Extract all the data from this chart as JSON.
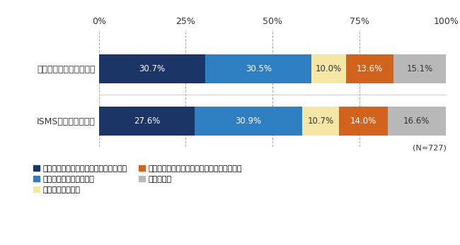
{
  "categories": [
    "プライバシーマーク制度",
    "ISMS適合性評価制度"
  ],
  "series": [
    {
      "label": "以前より重視しており、今後も重視する",
      "values": [
        30.7,
        27.6
      ],
      "color": "#1a3566"
    },
    {
      "label": "重視するように変わった",
      "values": [
        30.5,
        30.9
      ],
      "color": "#2e7fc1"
    },
    {
      "label": "重視しなくなった",
      "values": [
        10.0,
        10.7
      ],
      "color": "#f5e6a3"
    },
    {
      "label": "以前より重視しておらず、今後も重視しない",
      "values": [
        13.6,
        14.0
      ],
      "color": "#d2631c"
    },
    {
      "label": "わからない",
      "values": [
        15.1,
        16.6
      ],
      "color": "#b8b8b8"
    }
  ],
  "note": "(N=727)",
  "xlim": [
    0,
    100
  ],
  "xticks": [
    0,
    25,
    50,
    75,
    100
  ],
  "xticklabels": [
    "0%",
    "25%",
    "50%",
    "75%",
    "100%"
  ],
  "bar_height": 0.55,
  "background_color": "#ffffff",
  "text_color": "#333333",
  "grid_color": "#aaaaaa",
  "separator_color": "#cccccc",
  "fontsize_label": 9,
  "fontsize_tick": 9,
  "fontsize_bar": 8.5,
  "fontsize_legend": 8,
  "fontsize_note": 8,
  "bar_text_threshold": 8,
  "legend_order": [
    0,
    1,
    2,
    3,
    4
  ]
}
